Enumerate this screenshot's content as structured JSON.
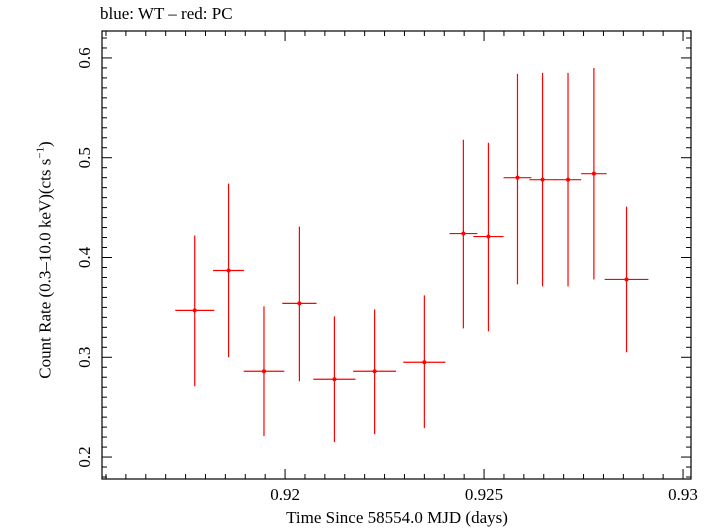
{
  "chart_data": {
    "type": "scatter",
    "title": "blue: WT – red: PC",
    "xlabel": "Time Since 58554.0 MJD (days)",
    "ylabel_main": "Count Rate (0.3–10.0 keV)(cts s",
    "ylabel_sup": "−1",
    "ylabel_end": ")",
    "xlim": [
      0.9154,
      0.9302
    ],
    "ylim": [
      0.178,
      0.627
    ],
    "x_ticks": [
      0.92,
      0.925,
      0.93
    ],
    "x_tick_labels": [
      "0.92",
      "0.925",
      "0.93"
    ],
    "y_ticks": [
      0.2,
      0.3,
      0.4,
      0.5,
      0.6
    ],
    "y_tick_labels": [
      "0.2",
      "0.3",
      "0.4",
      "0.5",
      "0.6"
    ],
    "series": [
      {
        "name": "PC",
        "color": "#ff0000",
        "points": [
          {
            "x": 0.91773,
            "xerr": 0.00049,
            "y": 0.347,
            "ylo": 0.271,
            "yhi": 0.422
          },
          {
            "x": 0.91858,
            "xerr": 0.00039,
            "y": 0.387,
            "ylo": 0.3,
            "yhi": 0.474
          },
          {
            "x": 0.91947,
            "xerr": 0.00051,
            "y": 0.286,
            "ylo": 0.221,
            "yhi": 0.351
          },
          {
            "x": 0.92036,
            "xerr": 0.00043,
            "y": 0.354,
            "ylo": 0.276,
            "yhi": 0.431
          },
          {
            "x": 0.92124,
            "xerr": 0.00053,
            "y": 0.278,
            "ylo": 0.215,
            "yhi": 0.341
          },
          {
            "x": 0.92225,
            "xerr": 0.00054,
            "y": 0.286,
            "ylo": 0.223,
            "yhi": 0.348
          },
          {
            "x": 0.9235,
            "xerr": 0.00053,
            "y": 0.295,
            "ylo": 0.229,
            "yhi": 0.362
          },
          {
            "x": 0.92448,
            "xerr": 0.00035,
            "y": 0.424,
            "ylo": 0.329,
            "yhi": 0.518
          },
          {
            "x": 0.92511,
            "xerr": 0.00038,
            "y": 0.421,
            "ylo": 0.326,
            "yhi": 0.515
          },
          {
            "x": 0.92584,
            "xerr": 0.00035,
            "y": 0.48,
            "ylo": 0.373,
            "yhi": 0.584
          },
          {
            "x": 0.92647,
            "xerr": 0.00033,
            "y": 0.478,
            "ylo": 0.371,
            "yhi": 0.585
          },
          {
            "x": 0.92711,
            "xerr": 0.00033,
            "y": 0.478,
            "ylo": 0.371,
            "yhi": 0.585
          },
          {
            "x": 0.92776,
            "xerr": 0.00032,
            "y": 0.484,
            "ylo": 0.378,
            "yhi": 0.59
          },
          {
            "x": 0.92858,
            "xerr": 0.00055,
            "y": 0.378,
            "ylo": 0.305,
            "yhi": 0.451
          }
        ]
      }
    ]
  }
}
